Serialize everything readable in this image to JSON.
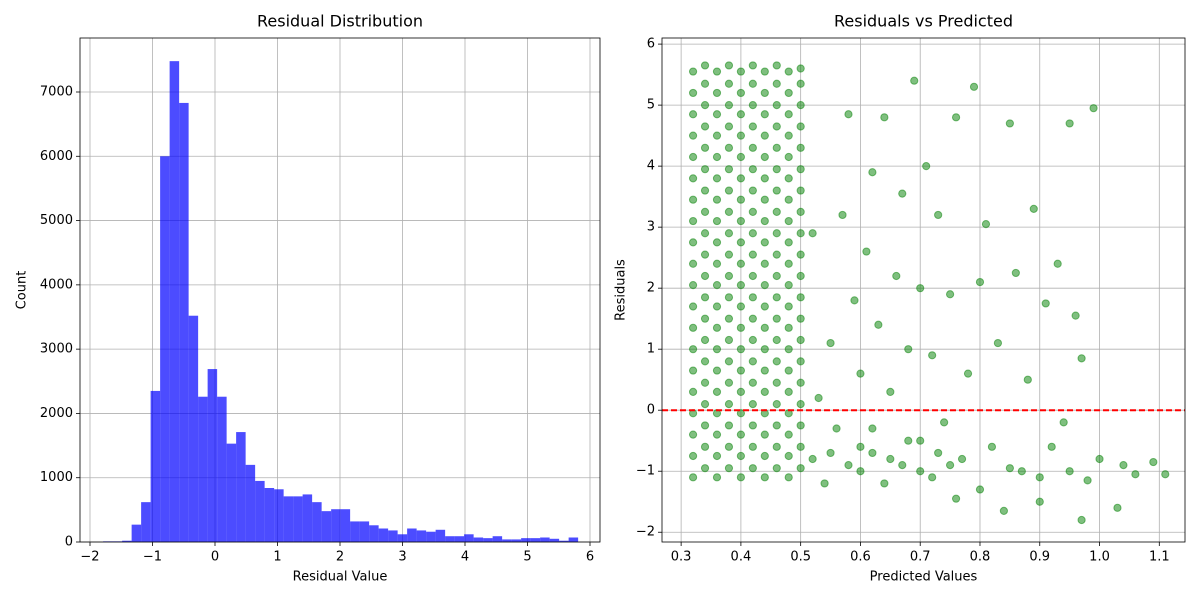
{
  "chart_data": [
    {
      "type": "histogram",
      "title": "Residual Distribution",
      "x_label": "Residual Value",
      "y_label": "Count",
      "color": "#0000ff",
      "opacity": 0.7,
      "grid": true,
      "bins": [
        -1.79,
        -1.638,
        -1.486,
        -1.334,
        -1.182,
        -1.03,
        -0.878,
        -0.726,
        -0.574,
        -0.422,
        -0.27,
        -0.118,
        0.034,
        0.186,
        0.338,
        0.49,
        0.642,
        0.794,
        0.946,
        1.098,
        1.25,
        1.402,
        1.554,
        1.706,
        1.858,
        2.01,
        2.162,
        2.314,
        2.466,
        2.618,
        2.77,
        2.922,
        3.074,
        3.226,
        3.378,
        3.53,
        3.682,
        3.834,
        3.986,
        4.138,
        4.29,
        4.442,
        4.594,
        4.746,
        4.898,
        5.05,
        5.202,
        5.354,
        5.506,
        5.658,
        5.81
      ],
      "counts": [
        10,
        10,
        20,
        270,
        620,
        2350,
        6000,
        7480,
        6830,
        3520,
        2260,
        2690,
        2260,
        1530,
        1710,
        1200,
        950,
        840,
        820,
        710,
        710,
        740,
        620,
        480,
        510,
        510,
        320,
        320,
        260,
        210,
        180,
        120,
        210,
        180,
        160,
        190,
        90,
        90,
        120,
        70,
        60,
        90,
        40,
        40,
        60,
        60,
        70,
        50,
        20,
        70
      ],
      "xlim": [
        -2.16,
        6.16
      ],
      "xticks": [
        {
          "value": -2,
          "label": "−2"
        },
        {
          "value": -1,
          "label": "−1"
        },
        0,
        1,
        2,
        3,
        4,
        5,
        6
      ],
      "ylim": [
        0,
        7840
      ],
      "yticks": [
        0,
        1000,
        2000,
        3000,
        4000,
        5000,
        6000,
        7000
      ]
    },
    {
      "type": "scatter",
      "title": "Residuals vs Predicted",
      "x_label": "Predicted Values",
      "y_label": "Residuals",
      "color": "#008000",
      "opacity": 0.5,
      "grid": true,
      "reference_line": {
        "value": 0,
        "color": "#ff0000"
      },
      "x": [
        0.32,
        0.32,
        0.32,
        0.32,
        0.32,
        0.32,
        0.32,
        0.32,
        0.32,
        0.32,
        0.32,
        0.32,
        0.32,
        0.32,
        0.32,
        0.32,
        0.32,
        0.32,
        0.32,
        0.32,
        0.34,
        0.34,
        0.34,
        0.34,
        0.34,
        0.34,
        0.34,
        0.34,
        0.34,
        0.34,
        0.34,
        0.34,
        0.34,
        0.34,
        0.34,
        0.34,
        0.34,
        0.34,
        0.34,
        0.34,
        0.36,
        0.36,
        0.36,
        0.36,
        0.36,
        0.36,
        0.36,
        0.36,
        0.36,
        0.36,
        0.36,
        0.36,
        0.36,
        0.36,
        0.36,
        0.36,
        0.36,
        0.36,
        0.36,
        0.36,
        0.38,
        0.38,
        0.38,
        0.38,
        0.38,
        0.38,
        0.38,
        0.38,
        0.38,
        0.38,
        0.38,
        0.38,
        0.38,
        0.38,
        0.38,
        0.38,
        0.38,
        0.38,
        0.38,
        0.38,
        0.4,
        0.4,
        0.4,
        0.4,
        0.4,
        0.4,
        0.4,
        0.4,
        0.4,
        0.4,
        0.4,
        0.4,
        0.4,
        0.4,
        0.4,
        0.4,
        0.4,
        0.4,
        0.4,
        0.4,
        0.42,
        0.42,
        0.42,
        0.42,
        0.42,
        0.42,
        0.42,
        0.42,
        0.42,
        0.42,
        0.42,
        0.42,
        0.42,
        0.42,
        0.42,
        0.42,
        0.42,
        0.42,
        0.42,
        0.42,
        0.44,
        0.44,
        0.44,
        0.44,
        0.44,
        0.44,
        0.44,
        0.44,
        0.44,
        0.44,
        0.44,
        0.44,
        0.44,
        0.44,
        0.44,
        0.44,
        0.44,
        0.44,
        0.44,
        0.44,
        0.46,
        0.46,
        0.46,
        0.46,
        0.46,
        0.46,
        0.46,
        0.46,
        0.46,
        0.46,
        0.46,
        0.46,
        0.46,
        0.46,
        0.46,
        0.46,
        0.46,
        0.46,
        0.46,
        0.46,
        0.48,
        0.48,
        0.48,
        0.48,
        0.48,
        0.48,
        0.48,
        0.48,
        0.48,
        0.48,
        0.48,
        0.48,
        0.48,
        0.48,
        0.48,
        0.48,
        0.48,
        0.48,
        0.48,
        0.48,
        0.5,
        0.5,
        0.5,
        0.5,
        0.5,
        0.5,
        0.5,
        0.5,
        0.5,
        0.5,
        0.5,
        0.5,
        0.5,
        0.5,
        0.5,
        0.5,
        0.5,
        0.5,
        0.5,
        0.5,
        0.52,
        0.53,
        0.52,
        0.54,
        0.55,
        0.56,
        0.57,
        0.58,
        0.58,
        0.59,
        0.6,
        0.6,
        0.61,
        0.62,
        0.62,
        0.63,
        0.64,
        0.64,
        0.65,
        0.66,
        0.67,
        0.67,
        0.68,
        0.69,
        0.7,
        0.7,
        0.71,
        0.72,
        0.72,
        0.73,
        0.74,
        0.75,
        0.76,
        0.77,
        0.78,
        0.79,
        0.8,
        0.8,
        0.81,
        0.82,
        0.83,
        0.84,
        0.85,
        0.86,
        0.87,
        0.88,
        0.89,
        0.9,
        0.91,
        0.92,
        0.93,
        0.94,
        0.95,
        0.96,
        0.97,
        0.98,
        0.99,
        1.0,
        1.03,
        1.04,
        1.06,
        1.09,
        1.11,
        0.97,
        0.9,
        0.76,
        0.55,
        0.6,
        0.65,
        0.7,
        0.75,
        0.85,
        0.95,
        0.62,
        0.68,
        0.73
      ],
      "y": [
        -1.1,
        -0.75,
        -0.4,
        -0.05,
        0.3,
        0.65,
        1.0,
        1.35,
        1.7,
        2.05,
        2.4,
        2.75,
        3.1,
        3.45,
        3.8,
        4.15,
        4.5,
        4.85,
        5.2,
        5.55,
        -0.95,
        -0.6,
        -0.25,
        0.1,
        0.45,
        0.8,
        1.15,
        1.5,
        1.85,
        2.2,
        2.55,
        2.9,
        3.25,
        3.6,
        3.95,
        4.3,
        4.65,
        5.0,
        5.35,
        5.65,
        -1.1,
        -0.75,
        -0.4,
        -0.05,
        0.3,
        0.65,
        1.0,
        1.35,
        1.7,
        2.05,
        2.4,
        2.75,
        3.1,
        3.45,
        3.8,
        4.15,
        4.5,
        4.85,
        5.2,
        5.55,
        -0.95,
        -0.6,
        -0.25,
        0.1,
        0.45,
        0.8,
        1.15,
        1.5,
        1.85,
        2.2,
        2.55,
        2.9,
        3.25,
        3.6,
        3.95,
        4.3,
        4.65,
        5.0,
        5.35,
        5.65,
        -1.1,
        -0.75,
        -0.4,
        -0.05,
        0.3,
        0.65,
        1.0,
        1.35,
        1.7,
        2.05,
        2.4,
        2.75,
        3.1,
        3.45,
        3.8,
        4.15,
        4.5,
        4.85,
        5.2,
        5.55,
        -0.95,
        -0.6,
        -0.25,
        0.1,
        0.45,
        0.8,
        1.15,
        1.5,
        1.85,
        2.2,
        2.55,
        2.9,
        3.25,
        3.6,
        3.95,
        4.3,
        4.65,
        5.0,
        5.35,
        5.65,
        -1.1,
        -0.75,
        -0.4,
        -0.05,
        0.3,
        0.65,
        1.0,
        1.35,
        1.7,
        2.05,
        2.4,
        2.75,
        3.1,
        3.45,
        3.8,
        4.15,
        4.5,
        4.85,
        5.2,
        5.55,
        -0.95,
        -0.6,
        -0.25,
        0.1,
        0.45,
        0.8,
        1.15,
        1.5,
        1.85,
        2.2,
        2.55,
        2.9,
        3.25,
        3.6,
        3.95,
        4.3,
        4.65,
        5.0,
        5.35,
        5.65,
        -1.1,
        -0.75,
        -0.4,
        -0.05,
        0.3,
        0.65,
        1.0,
        1.35,
        1.7,
        2.05,
        2.4,
        2.75,
        3.1,
        3.45,
        3.8,
        4.15,
        4.5,
        4.85,
        5.2,
        5.55,
        -0.95,
        -0.6,
        -0.25,
        0.1,
        0.45,
        0.8,
        1.15,
        1.5,
        1.85,
        2.2,
        2.55,
        2.9,
        3.25,
        3.6,
        3.95,
        4.3,
        4.65,
        5.0,
        5.35,
        5.6,
        -0.8,
        0.2,
        2.9,
        -1.2,
        1.1,
        -0.3,
        3.2,
        4.85,
        -0.9,
        1.8,
        -1.0,
        0.6,
        2.6,
        -0.7,
        3.9,
        1.4,
        -1.2,
        4.8,
        0.3,
        2.2,
        -0.9,
        3.55,
        1.0,
        5.4,
        -0.5,
        2.0,
        4.0,
        -1.1,
        0.9,
        3.2,
        -0.2,
        1.9,
        4.8,
        -0.8,
        0.6,
        5.3,
        -1.3,
        2.1,
        3.05,
        -0.6,
        1.1,
        -1.65,
        4.7,
        2.25,
        -1.0,
        0.5,
        3.3,
        -1.1,
        1.75,
        -0.6,
        2.4,
        -0.2,
        4.7,
        1.55,
        -1.8,
        -1.15,
        4.95,
        -0.8,
        -1.6,
        -0.9,
        -1.05,
        -0.85,
        -1.05,
        0.85,
        -1.5,
        -1.45,
        -0.7,
        -0.6,
        -0.8,
        -1.0,
        -0.9,
        -0.95,
        -1.0,
        -0.3,
        -0.5,
        -0.7
      ],
      "xlim": [
        0.268,
        1.143
      ],
      "xticks": [
        0.3,
        0.4,
        0.5,
        0.6,
        0.7,
        0.8,
        0.9,
        {
          "value": 1,
          "label": "1.0"
        },
        1.1
      ],
      "ylim": [
        -2.16,
        6.1
      ],
      "yticks": [
        {
          "value": -2,
          "label": "−2"
        },
        {
          "value": -1,
          "label": "−1"
        },
        0,
        1,
        2,
        3,
        4,
        5,
        6
      ]
    }
  ]
}
